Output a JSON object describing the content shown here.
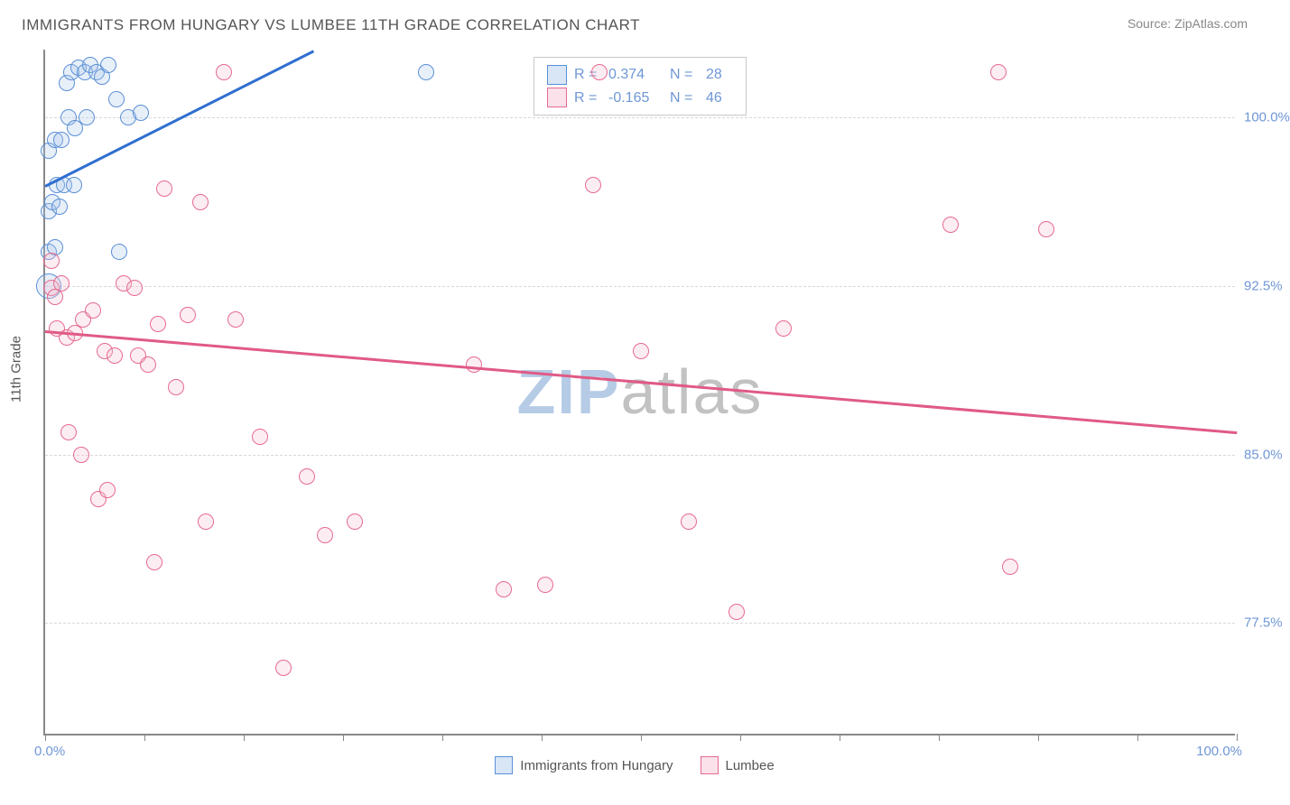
{
  "title": "IMMIGRANTS FROM HUNGARY VS LUMBEE 11TH GRADE CORRELATION CHART",
  "source_label": "Source: ",
  "source_name": "ZipAtlas.com",
  "yaxis_label": "11th Grade",
  "watermark_bold": "ZIP",
  "watermark_light": "atlas",
  "chart": {
    "type": "scatter",
    "background_color": "#ffffff",
    "grid_color": "#d8d8d8",
    "axis_color": "#888888",
    "tick_label_color": "#6f97d6",
    "label_fontsize": 15,
    "title_fontsize": 17,
    "xlim": [
      0,
      100
    ],
    "ylim": [
      72.5,
      103.0
    ],
    "xaxis_min_label": "0.0%",
    "xaxis_max_label": "100.0%",
    "xticks": [
      0,
      8.3,
      16.7,
      25,
      33.3,
      41.7,
      50,
      58.3,
      66.7,
      75,
      83.3,
      91.7,
      100
    ],
    "yticks": [
      {
        "value": 100.0,
        "label": "100.0%"
      },
      {
        "value": 92.5,
        "label": "92.5%"
      },
      {
        "value": 85.0,
        "label": "85.0%"
      },
      {
        "value": 77.5,
        "label": "77.5%"
      }
    ],
    "marker_radius": 9,
    "marker_border_width": 1.5,
    "marker_fill_opacity": 0.28,
    "series": [
      {
        "id": "hungary",
        "label": "Immigrants from Hungary",
        "color_border": "#5a8fd6",
        "color_fill": "#a9c7ea",
        "R": "0.374",
        "N": "28",
        "trend": {
          "x1": 0,
          "y1": 97.0,
          "x2": 22.5,
          "y2": 103.0,
          "color": "#2f6fd0",
          "width": 3
        },
        "points": [
          {
            "x": 0.3,
            "y": 92.5,
            "r": 14
          },
          {
            "x": 0.3,
            "y": 94.0
          },
          {
            "x": 0.8,
            "y": 94.2
          },
          {
            "x": 0.3,
            "y": 95.8
          },
          {
            "x": 0.6,
            "y": 96.2
          },
          {
            "x": 1.2,
            "y": 96.0
          },
          {
            "x": 1.0,
            "y": 97.0
          },
          {
            "x": 1.6,
            "y": 97.0
          },
          {
            "x": 2.4,
            "y": 97.0
          },
          {
            "x": 0.3,
            "y": 98.5
          },
          {
            "x": 0.8,
            "y": 99.0
          },
          {
            "x": 1.4,
            "y": 99.0
          },
          {
            "x": 2.0,
            "y": 100.0
          },
          {
            "x": 2.5,
            "y": 99.5
          },
          {
            "x": 3.5,
            "y": 100.0
          },
          {
            "x": 1.8,
            "y": 101.5
          },
          {
            "x": 2.2,
            "y": 102.0
          },
          {
            "x": 2.8,
            "y": 102.2
          },
          {
            "x": 3.3,
            "y": 102.0
          },
          {
            "x": 3.8,
            "y": 102.3
          },
          {
            "x": 4.3,
            "y": 102.0
          },
          {
            "x": 4.8,
            "y": 101.8
          },
          {
            "x": 5.3,
            "y": 102.3
          },
          {
            "x": 6.0,
            "y": 100.8
          },
          {
            "x": 7.0,
            "y": 100.0
          },
          {
            "x": 8.0,
            "y": 100.2
          },
          {
            "x": 6.2,
            "y": 94.0
          },
          {
            "x": 32.0,
            "y": 102.0
          }
        ]
      },
      {
        "id": "lumbee",
        "label": "Lumbee",
        "color_border": "#e66a8f",
        "color_fill": "#f6bfd0",
        "R": "-0.165",
        "N": "46",
        "trend": {
          "x1": 0,
          "y1": 90.5,
          "x2": 100,
          "y2": 86.0,
          "color": "#e05a85",
          "width": 3
        },
        "points": [
          {
            "x": 0.5,
            "y": 92.4
          },
          {
            "x": 0.8,
            "y": 92.0
          },
          {
            "x": 1.4,
            "y": 92.6
          },
          {
            "x": 0.5,
            "y": 93.6
          },
          {
            "x": 1.0,
            "y": 90.6
          },
          {
            "x": 1.8,
            "y": 90.2
          },
          {
            "x": 2.5,
            "y": 90.4
          },
          {
            "x": 3.2,
            "y": 91.0
          },
          {
            "x": 4.0,
            "y": 91.4
          },
          {
            "x": 5.0,
            "y": 89.6
          },
          {
            "x": 5.8,
            "y": 89.4
          },
          {
            "x": 6.6,
            "y": 92.6
          },
          {
            "x": 7.5,
            "y": 92.4
          },
          {
            "x": 7.8,
            "y": 89.4
          },
          {
            "x": 8.6,
            "y": 89.0
          },
          {
            "x": 9.5,
            "y": 90.8
          },
          {
            "x": 10.0,
            "y": 96.8
          },
          {
            "x": 11.0,
            "y": 88.0
          },
          {
            "x": 12.0,
            "y": 91.2
          },
          {
            "x": 13.0,
            "y": 96.2
          },
          {
            "x": 15.0,
            "y": 102.0
          },
          {
            "x": 16.0,
            "y": 91.0
          },
          {
            "x": 18.0,
            "y": 85.8
          },
          {
            "x": 20.0,
            "y": 75.5
          },
          {
            "x": 22.0,
            "y": 84.0
          },
          {
            "x": 23.5,
            "y": 81.4
          },
          {
            "x": 26.0,
            "y": 82.0
          },
          {
            "x": 13.5,
            "y": 82.0
          },
          {
            "x": 2.0,
            "y": 86.0
          },
          {
            "x": 3.0,
            "y": 85.0
          },
          {
            "x": 4.5,
            "y": 83.0
          },
          {
            "x": 5.2,
            "y": 83.4
          },
          {
            "x": 9.2,
            "y": 80.2
          },
          {
            "x": 36.0,
            "y": 89.0
          },
          {
            "x": 38.5,
            "y": 79.0
          },
          {
            "x": 42.0,
            "y": 79.2
          },
          {
            "x": 46.0,
            "y": 97.0
          },
          {
            "x": 50.0,
            "y": 89.6
          },
          {
            "x": 54.0,
            "y": 82.0
          },
          {
            "x": 58.0,
            "y": 78.0
          },
          {
            "x": 62.0,
            "y": 90.6
          },
          {
            "x": 76.0,
            "y": 95.2
          },
          {
            "x": 80.0,
            "y": 102.0
          },
          {
            "x": 81.0,
            "y": 80.0
          },
          {
            "x": 84.0,
            "y": 95.0
          },
          {
            "x": 46.5,
            "y": 102.0
          }
        ]
      }
    ]
  },
  "legend_top": {
    "r_label": "R  =",
    "n_label": "N  ="
  }
}
